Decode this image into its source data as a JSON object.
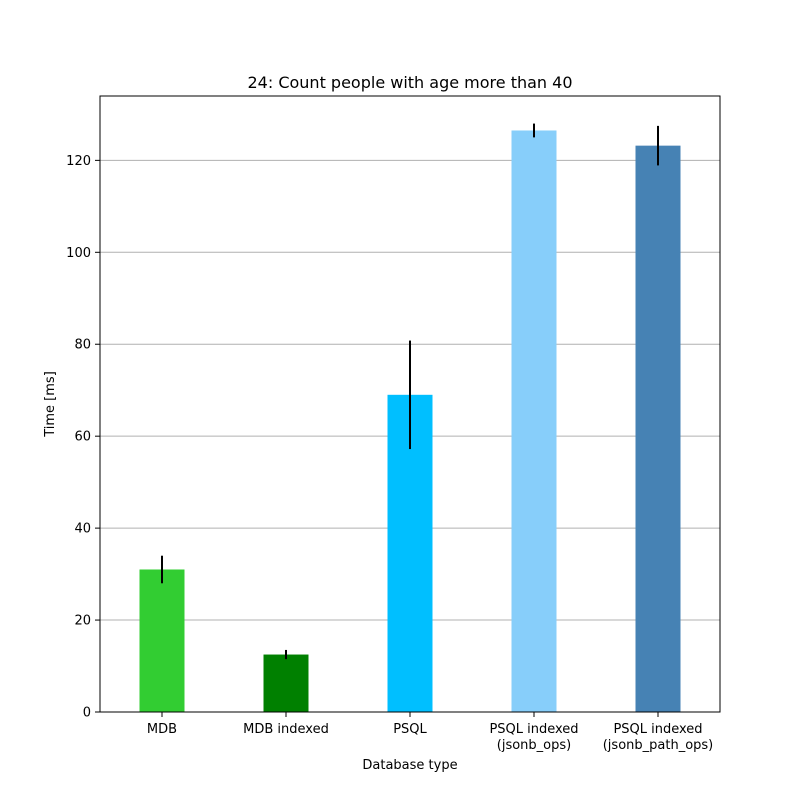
{
  "chart_data": {
    "type": "bar",
    "title": "24: Count people with age more than 40",
    "xlabel": "Database type",
    "ylabel": "Time [ms]",
    "ylim": [
      0,
      134
    ],
    "yticks": [
      0,
      20,
      40,
      60,
      80,
      100,
      120
    ],
    "grid": "horizontal",
    "categories": [
      [
        "MDB"
      ],
      [
        "MDB indexed"
      ],
      [
        "PSQL"
      ],
      [
        "PSQL indexed",
        "(jsonb_ops)"
      ],
      [
        "PSQL indexed",
        "(jsonb_path_ops)"
      ]
    ],
    "values": [
      31.0,
      12.5,
      69.0,
      126.5,
      123.2
    ],
    "errors": [
      3.0,
      1.0,
      11.8,
      1.5,
      4.3
    ],
    "colors": [
      "#32cd32",
      "#008000",
      "#00bfff",
      "#87cefa",
      "#4682b4"
    ],
    "error_color": "#000000",
    "grid_color": "#b0b0b0"
  }
}
